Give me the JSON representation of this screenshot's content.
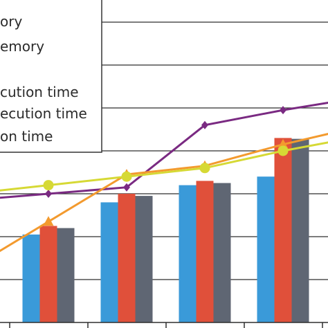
{
  "chart_data": {
    "type": "bar",
    "categories": [
      "",
      "",
      "",
      ""
    ],
    "grid": true,
    "legend_placement": "top-left",
    "ylim": [
      0,
      8
    ],
    "bar_series": [
      {
        "name": "",
        "color": "#3a9ad9",
        "values": [
          2.05,
          2.8,
          3.2,
          3.4
        ]
      },
      {
        "name": "",
        "color": "#e0503a",
        "values": [
          2.25,
          3.0,
          3.3,
          4.3
        ]
      },
      {
        "name": "",
        "color": "#5f6673",
        "values": [
          2.2,
          2.95,
          3.25,
          4.28
        ]
      }
    ],
    "line_series": [
      {
        "name": "",
        "color": "#7a2a82",
        "marker": "diamond",
        "values": [
          3.0,
          3.15,
          4.6,
          4.95
        ]
      },
      {
        "name": "",
        "color": "#f39a2e",
        "marker": "triangle",
        "values": [
          2.35,
          3.45,
          3.65,
          4.15
        ]
      },
      {
        "name": "",
        "color": "#d6d935",
        "marker": "circle",
        "values": [
          3.2,
          3.4,
          3.6,
          4.0
        ]
      }
    ],
    "legend_entries": [
      "ory",
      "emory",
      "",
      "cution time",
      "ecution time",
      "on time"
    ]
  }
}
